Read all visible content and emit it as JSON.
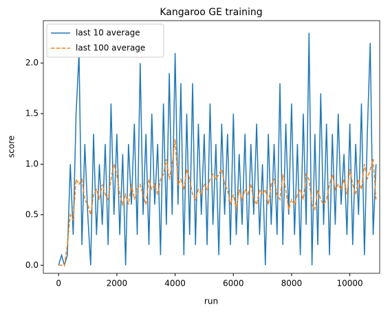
{
  "chart_data": {
    "type": "line",
    "title": "Kangaroo GE training",
    "x_label": "run",
    "y_label": "score",
    "x": [
      0,
      100,
      200,
      300,
      400,
      500,
      600,
      700,
      800,
      900,
      1000,
      1100,
      1200,
      1300,
      1400,
      1500,
      1600,
      1700,
      1800,
      1900,
      2000,
      2100,
      2200,
      2300,
      2400,
      2500,
      2600,
      2700,
      2800,
      2900,
      3000,
      3100,
      3200,
      3300,
      3400,
      3500,
      3600,
      3700,
      3800,
      3900,
      4000,
      4100,
      4200,
      4300,
      4400,
      4500,
      4600,
      4700,
      4800,
      4900,
      5000,
      5100,
      5200,
      5300,
      5400,
      5500,
      5600,
      5700,
      5800,
      5900,
      6000,
      6100,
      6200,
      6300,
      6400,
      6500,
      6600,
      6700,
      6800,
      6900,
      7000,
      7100,
      7200,
      7300,
      7400,
      7500,
      7600,
      7700,
      7800,
      7900,
      8000,
      8100,
      8200,
      8300,
      8400,
      8500,
      8600,
      8700,
      8800,
      8900,
      9000,
      9100,
      9200,
      9300,
      9400,
      9500,
      9600,
      9700,
      9800,
      9900,
      10000,
      10100,
      10200,
      10300,
      10400,
      10500,
      10600,
      10700,
      10800,
      10900
    ],
    "series": [
      {
        "name": "last 10 average",
        "color": "#1f77b4",
        "dash": false,
        "values": [
          0,
          0.1,
          0,
          0.1,
          1.0,
          0.3,
          1.5,
          2.1,
          0.2,
          1.2,
          0.5,
          0.0,
          1.3,
          0.3,
          1.0,
          0.4,
          1.2,
          0.2,
          1.6,
          0.5,
          1.3,
          0.3,
          1.1,
          0.0,
          1.2,
          0.6,
          1.4,
          0.3,
          2.0,
          0.5,
          1.3,
          0.2,
          1.5,
          0.6,
          1.2,
          0.1,
          1.6,
          0.4,
          1.9,
          0.5,
          2.1,
          0.6,
          1.8,
          0.1,
          1.5,
          0.3,
          1.8,
          0.2,
          1.4,
          0.5,
          1.3,
          0.2,
          1.6,
          0.4,
          1.2,
          0.1,
          1.4,
          0.5,
          1.3,
          0.2,
          1.5,
          0.3,
          1.1,
          0.4,
          1.3,
          0.2,
          1.2,
          0.5,
          1.4,
          0.3,
          1.0,
          0.0,
          1.3,
          0.4,
          1.2,
          0.3,
          1.8,
          0.2,
          1.4,
          0.5,
          1.6,
          0.3,
          1.2,
          0.1,
          1.5,
          0.4,
          2.3,
          0.0,
          1.3,
          0.2,
          1.7,
          0.4,
          1.4,
          0.1,
          1.3,
          0.4,
          1.5,
          0.6,
          1.1,
          0.3,
          1.4,
          0.2,
          1.2,
          0.5,
          1.6,
          0.1,
          1.3,
          2.2,
          0.3,
          1.0
        ]
      },
      {
        "name": "last 100 average",
        "color": "#ff7f0e",
        "dash": true,
        "values": [
          0,
          0,
          0,
          0.2,
          0.5,
          0.45,
          0.85,
          0.8,
          0.85,
          0.65,
          0.6,
          0.5,
          0.7,
          0.75,
          0.65,
          0.8,
          0.7,
          0.65,
          0.85,
          1.0,
          0.9,
          0.7,
          0.6,
          0.7,
          0.6,
          0.8,
          0.65,
          0.75,
          0.8,
          0.7,
          0.6,
          0.85,
          0.75,
          0.8,
          0.7,
          0.85,
          0.9,
          1.05,
          0.85,
          1.0,
          1.25,
          0.8,
          0.85,
          0.75,
          0.95,
          0.85,
          0.7,
          0.65,
          0.75,
          0.7,
          0.8,
          0.75,
          0.85,
          0.9,
          0.85,
          0.9,
          0.95,
          0.8,
          0.75,
          0.6,
          0.7,
          0.55,
          0.75,
          0.65,
          0.75,
          0.7,
          0.8,
          0.65,
          0.6,
          0.75,
          0.7,
          0.75,
          0.6,
          0.8,
          0.85,
          0.7,
          0.65,
          0.9,
          0.75,
          0.55,
          0.65,
          0.6,
          0.7,
          0.75,
          0.65,
          0.9,
          0.85,
          0.6,
          0.55,
          0.75,
          0.65,
          0.6,
          0.65,
          0.8,
          0.9,
          0.75,
          0.8,
          0.75,
          0.85,
          0.7,
          0.95,
          0.8,
          0.7,
          0.85,
          0.75,
          1.0,
          0.85,
          0.95,
          1.05,
          0.65
        ]
      }
    ],
    "xlim": [
      -525,
      11025
    ],
    "xticks": [
      0,
      2000,
      4000,
      6000,
      8000,
      10000
    ],
    "ylim": [
      -0.08,
      2.42
    ],
    "yticks": [
      {
        "value": 0,
        "label": "0.0"
      },
      0.5,
      {
        "value": 1,
        "label": "1.0"
      },
      1.5,
      {
        "value": 2,
        "label": "2.0"
      }
    ],
    "grid": false,
    "legend": "upper left"
  }
}
